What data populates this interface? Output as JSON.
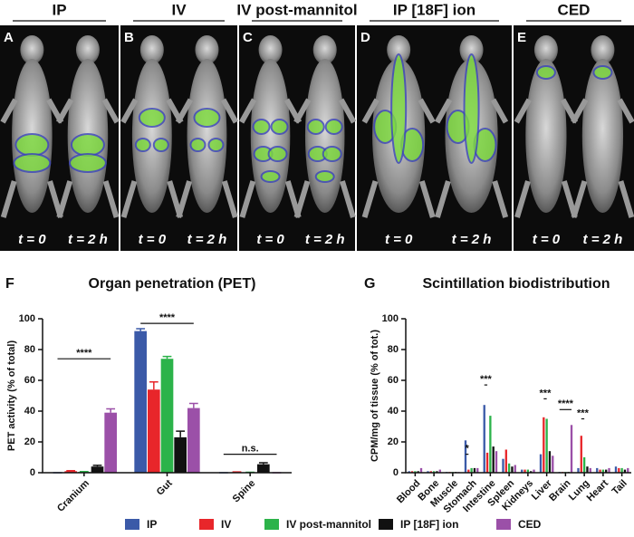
{
  "panels": [
    {
      "letter": "A",
      "header": "IP",
      "times": [
        "t = 0",
        "t = 2 h"
      ]
    },
    {
      "letter": "B",
      "header": "IV",
      "times": [
        "t = 0",
        "t = 2 h"
      ]
    },
    {
      "letter": "C",
      "header": "IV post-mannitol",
      "times": [
        "t = 0",
        "t = 2 h"
      ]
    },
    {
      "letter": "D",
      "header": "IP [18F] ion",
      "times": [
        "t = 0",
        "t = 2 h"
      ]
    },
    {
      "letter": "E",
      "header": "CED",
      "times": [
        "t = 0",
        "t = 2 h"
      ]
    }
  ],
  "legend": [
    {
      "name": "IP",
      "color": "#3b5aa8"
    },
    {
      "name": "IV",
      "color": "#e8262a"
    },
    {
      "name": "IV post-mannitol",
      "color": "#2cb34a"
    },
    {
      "name": "IP [18F] ion",
      "color": "#111111"
    },
    {
      "name": "CED",
      "color": "#9b50a8"
    }
  ],
  "chart_data": [
    {
      "type": "bar",
      "letter": "F",
      "title": "Organ penetration (PET)",
      "ylabel": "PET activity (% of total)",
      "categories": [
        "Cranium",
        "Gut",
        "Spine"
      ],
      "series": [
        {
          "values": [
            0,
            92,
            0
          ],
          "errors": [
            0,
            1.5,
            0
          ]
        },
        {
          "values": [
            1,
            54,
            0.3
          ],
          "errors": [
            0.3,
            5,
            0.2
          ]
        },
        {
          "values": [
            0.5,
            74,
            0.2
          ],
          "errors": [
            0.2,
            1.5,
            0.1
          ]
        },
        {
          "values": [
            4,
            23,
            5.5
          ],
          "errors": [
            0.8,
            4,
            1
          ]
        },
        {
          "values": [
            39,
            42,
            0
          ],
          "errors": [
            2.5,
            3,
            0
          ]
        }
      ],
      "ylim": [
        0,
        100
      ],
      "yticks": [
        0,
        20,
        40,
        60,
        80,
        100
      ],
      "annotations": [
        "****",
        "****",
        "n.s."
      ]
    },
    {
      "type": "bar",
      "letter": "G",
      "title": "Scintillation biodistribution",
      "ylabel": "CPM/mg of tissue (% of tot.)",
      "categories": [
        "Blood",
        "Bone",
        "Muscle",
        "Stomach",
        "Intestine",
        "Spleen",
        "Kidneys",
        "Liver",
        "Brain",
        "Lung",
        "Heart",
        "Tail"
      ],
      "series": [
        {
          "values": [
            1,
            1,
            0.5,
            21,
            44,
            9,
            2,
            12,
            0.5,
            3,
            3,
            4
          ]
        },
        {
          "values": [
            1,
            1,
            0.5,
            2,
            13,
            15,
            2,
            36,
            0.5,
            24,
            2,
            3
          ]
        },
        {
          "values": [
            1,
            1,
            0.5,
            3,
            37,
            6,
            2,
            35,
            0.5,
            10,
            2,
            3
          ]
        },
        {
          "values": [
            1,
            1,
            0.5,
            3,
            17,
            4,
            1,
            14,
            0.5,
            4,
            2,
            2
          ]
        },
        {
          "values": [
            3,
            2,
            0.5,
            3,
            14,
            5,
            2,
            11,
            31,
            3,
            3,
            3
          ]
        }
      ],
      "ylim": [
        0,
        100
      ],
      "yticks": [
        0,
        20,
        40,
        60,
        80,
        100
      ],
      "annotations": [
        "*",
        "***",
        "***",
        "****",
        "***"
      ]
    }
  ]
}
